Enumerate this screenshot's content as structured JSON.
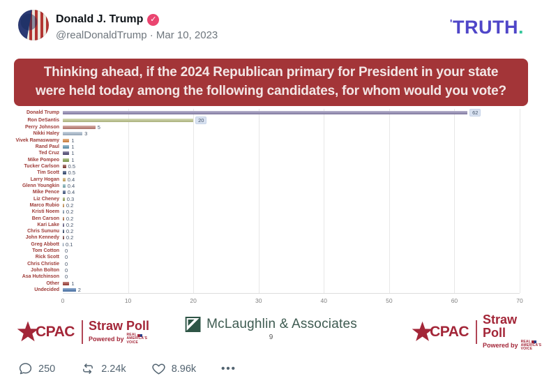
{
  "header": {
    "display_name": "Donald J. Trump",
    "verified_check": "✓",
    "meta": "@realDonaldTrump · Mar 10, 2023",
    "platform": {
      "tick": "'",
      "name": "TRUTH",
      "dot": "."
    }
  },
  "question_banner": {
    "text": "Thinking ahead, if the 2024 Republican primary for President in your state were held today among the following candidates, for whom would you vote?"
  },
  "chart_data": {
    "type": "bar",
    "orientation": "horizontal",
    "title": "Thinking ahead, if the 2024 Republican primary for President in your state were held today among the following candidates, for whom would you vote?",
    "categories": [
      "Donald Trump",
      "Ron DeSantis",
      "Perry Johnson",
      "Nikki Haley",
      "Vivek Ramaswamy",
      "Rand Paul",
      "Ted Cruz",
      "Mike Pompeo",
      "Tucker Carlson",
      "Tim Scott",
      "Larry Hogan",
      "Glenn Youngkin",
      "Mike Pence",
      "Liz Cheney",
      "Marco Rubio",
      "Kristi Noem",
      "Ben Carson",
      "Kari Lake",
      "Chris Sununu",
      "John Kennedy",
      "Greg Abbott",
      "Tom Cotton",
      "Rick Scott",
      "Chris Christie",
      "John Bolton",
      "Asa Hutchinson",
      "Other",
      "Undecided"
    ],
    "values": [
      62,
      20,
      5,
      3,
      1,
      1,
      1,
      1,
      0.5,
      0.5,
      0.4,
      0.4,
      0.4,
      0.3,
      0.2,
      0.2,
      0.2,
      0.2,
      0.2,
      0.2,
      0.1,
      0,
      0,
      0,
      0,
      0,
      1,
      2
    ],
    "value_labels": [
      "62",
      "20",
      "5",
      "3",
      "1",
      "1",
      "1",
      "1",
      "0.5",
      "0.5",
      "0.4",
      "0.4",
      "0.4",
      "0.3",
      "0.2",
      "0.2",
      "0.2",
      "0.2",
      "0.2",
      "0.2",
      "0.1",
      "0",
      "0",
      "0",
      "0",
      "0",
      "1",
      "2"
    ],
    "bar_colors": [
      "#8c84b0",
      "#bcc488",
      "#be7b71",
      "#a3b6ca",
      "#d9853c",
      "#5e95b2",
      "#4c4674",
      "#84a24f",
      "#823a32",
      "#2f4570",
      "#cca85f",
      "#79acb4",
      "#3f5682",
      "#97a65c",
      "#c78e4d",
      "#7e96ac",
      "#b06e41",
      "#5f5a80",
      "#2f4566",
      "#75403a",
      "#53708e",
      "#999999",
      "#999999",
      "#999999",
      "#999999",
      "#999999",
      "#9e3b33",
      "#4a77b0"
    ],
    "boxed_value_indices": [
      0,
      1
    ],
    "xlim": [
      0,
      70
    ],
    "x_ticks": [
      0,
      10,
      20,
      30,
      40,
      50,
      60,
      70
    ],
    "grid": true,
    "legend": "none"
  },
  "footer": {
    "cpac": {
      "brand": "CPAC",
      "title": "Straw Poll",
      "powered_by": "Powered by",
      "powered_brand_lines": [
        "REAL",
        "AMERICA'S",
        "VOICE"
      ]
    },
    "center": {
      "name": "McLaughlin & Associates",
      "page_number": "9"
    }
  },
  "engagement": {
    "replies": "250",
    "retruths": "2.24k",
    "likes": "8.96k",
    "more": "•••"
  },
  "colors": {
    "banner_bg": "#a33538",
    "banner_text": "#f3e7e6",
    "truth_purple": "#4f46c8",
    "truth_teal": "#35c79b",
    "verified_pink": "#ea4570",
    "cpac_red": "#a32638",
    "mclaughlin_green": "#2e5546",
    "chart_label_red": "#9e3a36",
    "value_text": "#44546a",
    "value_highlight_bg": "#d9e2f1",
    "engagement_gray": "#536471"
  }
}
